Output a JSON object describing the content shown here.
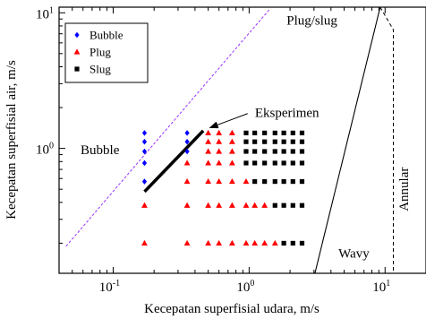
{
  "chart_data": {
    "type": "scatter",
    "title": "",
    "xlabel": "Kecepatan superfisial udara, m/s",
    "ylabel": "Kecepatan superfisial air, m/s",
    "x_scale": "log",
    "y_scale": "log",
    "xlim": [
      0.04,
      20
    ],
    "ylim": [
      0.12,
      11
    ],
    "grid": false,
    "legend_position": "top-left",
    "x_ticks": [
      {
        "value": 0.1,
        "base": "10",
        "exp": "-1"
      },
      {
        "value": 1,
        "base": "10",
        "exp": "0"
      },
      {
        "value": 10,
        "base": "10",
        "exp": "1"
      }
    ],
    "y_ticks": [
      {
        "value": 1,
        "base": "10",
        "exp": "0"
      },
      {
        "value": 10,
        "base": "10",
        "exp": "1"
      }
    ],
    "series": [
      {
        "name": "Bubble",
        "marker": "diamond",
        "color": "#0000ff",
        "points": [
          [
            0.17,
            1.3
          ],
          [
            0.17,
            1.12
          ],
          [
            0.17,
            0.95
          ],
          [
            0.17,
            0.78
          ],
          [
            0.17,
            0.57
          ],
          [
            0.35,
            1.3
          ],
          [
            0.35,
            1.12
          ],
          [
            0.35,
            0.95
          ]
        ]
      },
      {
        "name": "Plug",
        "marker": "triangle",
        "color": "#ff0000",
        "points": [
          [
            0.17,
            0.38
          ],
          [
            0.17,
            0.2
          ],
          [
            0.35,
            0.78
          ],
          [
            0.35,
            0.57
          ],
          [
            0.35,
            0.38
          ],
          [
            0.35,
            0.2
          ],
          [
            0.5,
            1.3
          ],
          [
            0.5,
            1.12
          ],
          [
            0.5,
            0.95
          ],
          [
            0.5,
            0.78
          ],
          [
            0.5,
            0.57
          ],
          [
            0.5,
            0.38
          ],
          [
            0.5,
            0.2
          ],
          [
            0.6,
            1.3
          ],
          [
            0.6,
            1.12
          ],
          [
            0.6,
            0.95
          ],
          [
            0.6,
            0.78
          ],
          [
            0.6,
            0.57
          ],
          [
            0.6,
            0.38
          ],
          [
            0.6,
            0.2
          ],
          [
            0.75,
            1.3
          ],
          [
            0.75,
            1.12
          ],
          [
            0.75,
            0.95
          ],
          [
            0.75,
            0.78
          ],
          [
            0.75,
            0.57
          ],
          [
            0.75,
            0.38
          ],
          [
            0.75,
            0.2
          ],
          [
            0.95,
            0.57
          ],
          [
            0.95,
            0.38
          ],
          [
            0.95,
            0.2
          ],
          [
            1.1,
            0.38
          ],
          [
            1.1,
            0.2
          ],
          [
            1.3,
            0.38
          ],
          [
            1.3,
            0.2
          ],
          [
            1.55,
            0.2
          ]
        ]
      },
      {
        "name": "Slug",
        "marker": "square",
        "color": "#000000",
        "points": [
          [
            0.95,
            1.3
          ],
          [
            0.95,
            1.12
          ],
          [
            0.95,
            0.95
          ],
          [
            0.95,
            0.78
          ],
          [
            1.1,
            1.3
          ],
          [
            1.1,
            1.12
          ],
          [
            1.1,
            0.95
          ],
          [
            1.1,
            0.78
          ],
          [
            1.1,
            0.57
          ],
          [
            1.3,
            1.3
          ],
          [
            1.3,
            1.12
          ],
          [
            1.3,
            0.95
          ],
          [
            1.3,
            0.78
          ],
          [
            1.3,
            0.57
          ],
          [
            1.55,
            1.3
          ],
          [
            1.55,
            1.12
          ],
          [
            1.55,
            0.95
          ],
          [
            1.55,
            0.78
          ],
          [
            1.55,
            0.57
          ],
          [
            1.55,
            0.38
          ],
          [
            1.8,
            1.3
          ],
          [
            1.8,
            1.12
          ],
          [
            1.8,
            0.95
          ],
          [
            1.8,
            0.78
          ],
          [
            1.8,
            0.57
          ],
          [
            1.8,
            0.38
          ],
          [
            1.8,
            0.2
          ],
          [
            2.1,
            1.3
          ],
          [
            2.1,
            1.12
          ],
          [
            2.1,
            0.95
          ],
          [
            2.1,
            0.78
          ],
          [
            2.1,
            0.57
          ],
          [
            2.1,
            0.38
          ],
          [
            2.1,
            0.2
          ],
          [
            2.45,
            1.3
          ],
          [
            2.45,
            1.12
          ],
          [
            2.45,
            0.95
          ],
          [
            2.45,
            0.78
          ],
          [
            2.45,
            0.57
          ],
          [
            2.45,
            0.38
          ],
          [
            2.45,
            0.2
          ]
        ]
      }
    ],
    "lines": {
      "experiment": {
        "points": [
          [
            0.17,
            0.48
          ],
          [
            0.46,
            1.35
          ]
        ],
        "color": "#000000"
      },
      "bubble_boundary": {
        "points": [
          [
            0.045,
            0.19
          ],
          [
            1.4,
            10.5
          ]
        ],
        "color": "#9933ff",
        "style": "dashed"
      },
      "plug_wavy_boundary": {
        "points": [
          [
            3.05,
            0.12
          ],
          [
            9.2,
            11
          ]
        ],
        "color": "#000000",
        "style": "solid"
      },
      "annular_boundary": {
        "points": [
          [
            9.2,
            11
          ],
          [
            11.5,
            7.5
          ],
          [
            11.5,
            0.12
          ]
        ],
        "color": "#000000",
        "style": "dashed"
      }
    },
    "annotations": [
      {
        "name": "region-plug-slug",
        "text": "Plug/slug",
        "at": [
          2.9,
          8.2
        ]
      },
      {
        "name": "region-bubble",
        "text": "Bubble",
        "at": [
          0.08,
          0.91
        ]
      },
      {
        "name": "region-wavy",
        "text": "Wavy",
        "at": [
          5.9,
          0.157
        ]
      },
      {
        "name": "region-annular",
        "text": "Annular",
        "at": [
          14.8,
          0.5
        ],
        "rotate": true
      },
      {
        "name": "experiment-label",
        "text": "Eksperimen",
        "at": [
          1.9,
          1.7
        ],
        "arrow_to": [
          0.5,
          1.4
        ]
      }
    ]
  }
}
